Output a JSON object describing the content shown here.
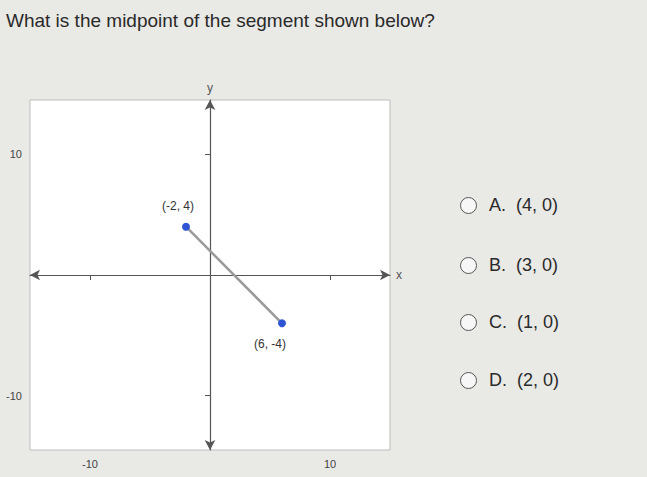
{
  "question": "What is the midpoint of the segment shown below?",
  "choices": [
    {
      "letter": "A.",
      "text": "(4, 0)"
    },
    {
      "letter": "B.",
      "text": "(3, 0)"
    },
    {
      "letter": "C.",
      "text": "(1, 0)"
    },
    {
      "letter": "D.",
      "text": "(2, 0)"
    }
  ],
  "chart_data": {
    "type": "line",
    "x": [
      -2,
      6
    ],
    "values": [
      4,
      -4
    ],
    "value_labels": [
      "(-2, 4)",
      "(6, -4)"
    ],
    "data_labels": true,
    "xlabel": "x",
    "ylabel": "y",
    "xlim": [
      -15,
      15
    ],
    "ylim": [
      -14.5,
      14.5
    ],
    "xticks": [
      -10,
      10
    ],
    "yticks": [
      -10,
      10
    ],
    "grid": false,
    "color": "#9a9a9a",
    "colors": [
      "#2f55d4",
      "#2f55d4"
    ],
    "marker": "circle"
  }
}
